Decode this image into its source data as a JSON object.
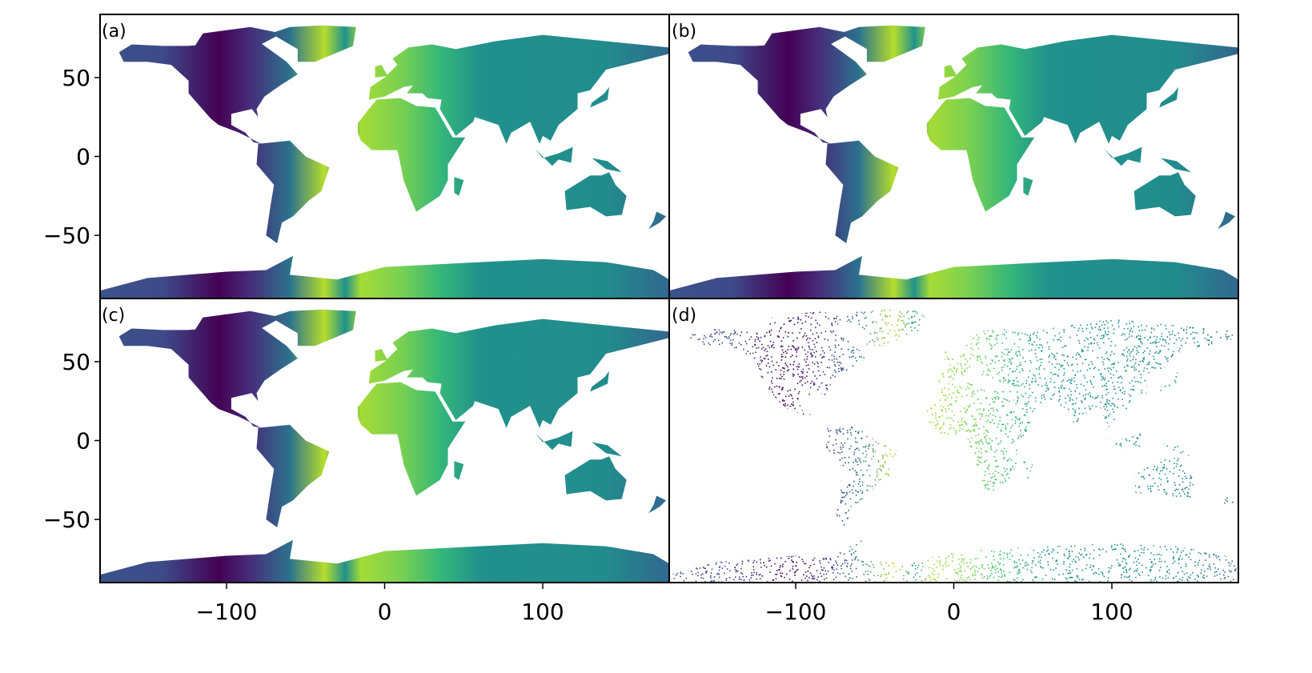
{
  "figure": {
    "panels": [
      {
        "label": "(a)",
        "style": "filled"
      },
      {
        "label": "(b)",
        "style": "filled"
      },
      {
        "label": "(c)",
        "style": "filled"
      },
      {
        "label": "(d)",
        "style": "scatter"
      }
    ],
    "x_axis": {
      "range": [
        -180,
        180
      ],
      "ticks": [
        -100,
        0,
        100
      ],
      "tick_labels": [
        "−100",
        "0",
        "100"
      ]
    },
    "y_axis": {
      "range": [
        -90,
        90
      ],
      "ticks": [
        50,
        0,
        -50
      ],
      "tick_labels": [
        "50",
        "0",
        "−50"
      ]
    },
    "colormap": "viridis",
    "colors": {
      "dark": "#440154",
      "mid": "#21918c",
      "bright": "#b5de2b"
    }
  }
}
